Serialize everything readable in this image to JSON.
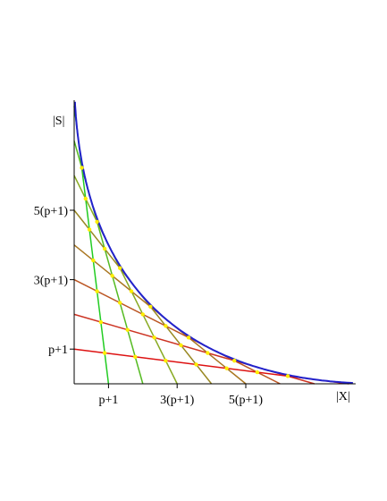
{
  "chart_data": {
    "type": "line",
    "axis_labels": {
      "x": "|X|",
      "y": "|S|"
    },
    "x_ticks": [
      {
        "value": 1,
        "label": "p+1"
      },
      {
        "value": 3,
        "label": "3(p+1)"
      },
      {
        "value": 5,
        "label": "5(p+1)"
      }
    ],
    "y_ticks": [
      {
        "value": 1,
        "label": "p+1"
      },
      {
        "value": 3,
        "label": "3(p+1)"
      },
      {
        "value": 5,
        "label": "5(p+1)"
      }
    ],
    "xlim": [
      0,
      8.2
    ],
    "ylim": [
      0,
      8.2
    ],
    "grid": false,
    "curve": {
      "color": "#2222cc",
      "t_range": [
        0.04,
        8.2
      ]
    },
    "family_count": 8,
    "family_colors": [
      "#22cc22",
      "#55bb22",
      "#88aa22",
      "#998822",
      "#aa7722",
      "#bb5522",
      "#cc3322",
      "#dd1111"
    ],
    "point_color": "#ffee00"
  }
}
